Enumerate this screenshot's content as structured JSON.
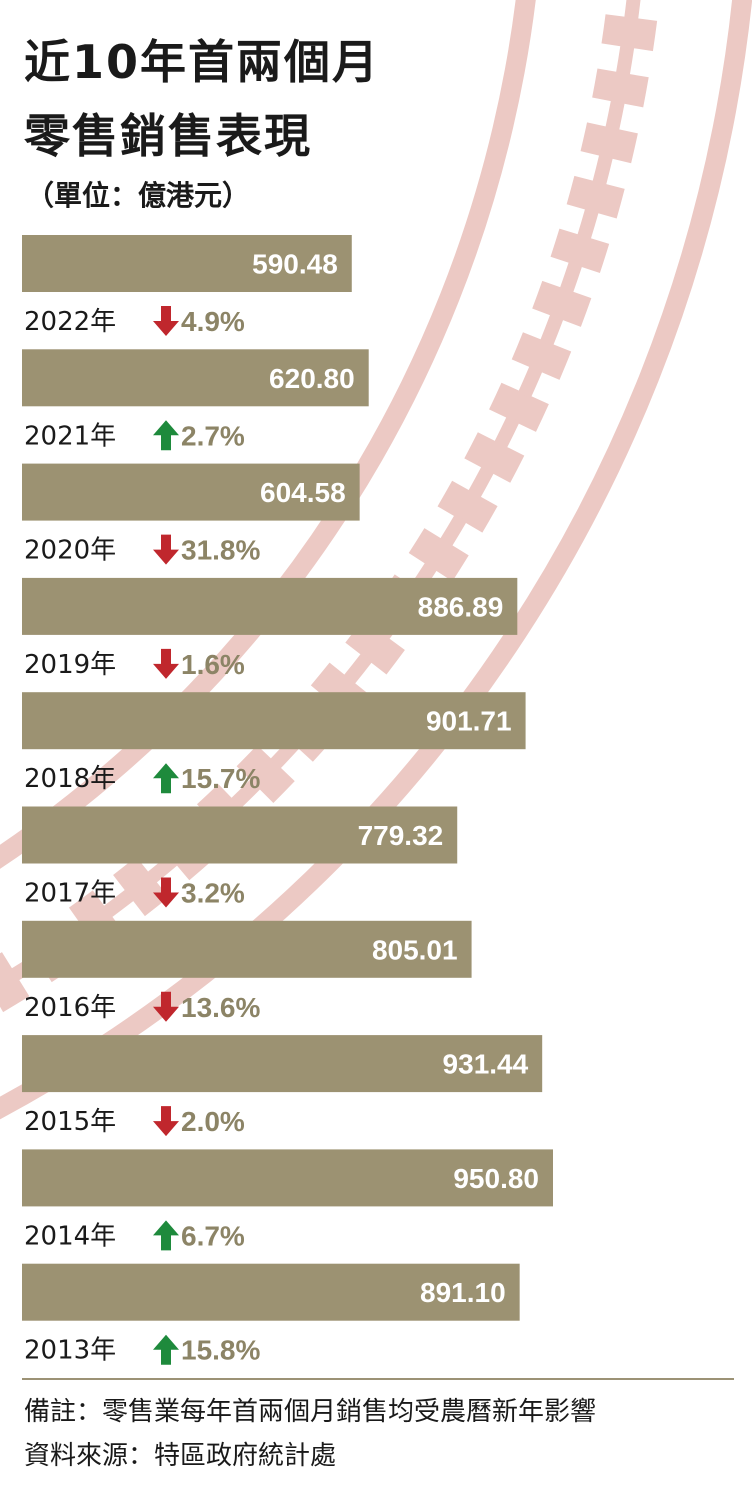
{
  "title": [
    "近10年首兩個月",
    "零售銷售表現"
  ],
  "unit": "（單位：億港元）",
  "colors": {
    "bar": "#9c9272",
    "bar_text": "#ffffff",
    "up": "#1e8a3c",
    "down": "#c0272d",
    "change_text": "#8c8466",
    "pattern": "#ecc9c4"
  },
  "chart_data": {
    "type": "bar",
    "orientation": "horizontal",
    "unit": "億港元",
    "categories": [
      "2022年",
      "2021年",
      "2020年",
      "2019年",
      "2018年",
      "2017年",
      "2016年",
      "2015年",
      "2014年",
      "2013年"
    ],
    "values": [
      590.48,
      620.8,
      604.58,
      886.89,
      901.71,
      779.32,
      805.01,
      931.44,
      950.8,
      891.1
    ],
    "value_labels": [
      "590.48",
      "620.80",
      "604.58",
      "886.89",
      "901.71",
      "779.32",
      "805.01",
      "931.44",
      "950.80",
      "891.10"
    ],
    "change_direction": [
      "down",
      "up",
      "down",
      "down",
      "up",
      "down",
      "down",
      "down",
      "up",
      "up"
    ],
    "change_labels": [
      "4.9%",
      "2.7%",
      "31.8%",
      "1.6%",
      "15.7%",
      "3.2%",
      "13.6%",
      "2.0%",
      "6.7%",
      "15.8%"
    ],
    "legend": "none",
    "grid": false
  },
  "footer": {
    "note": "備註：零售業每年首兩個月銷售均受農曆新年影響",
    "source": "資料來源：特區政府統計處"
  }
}
